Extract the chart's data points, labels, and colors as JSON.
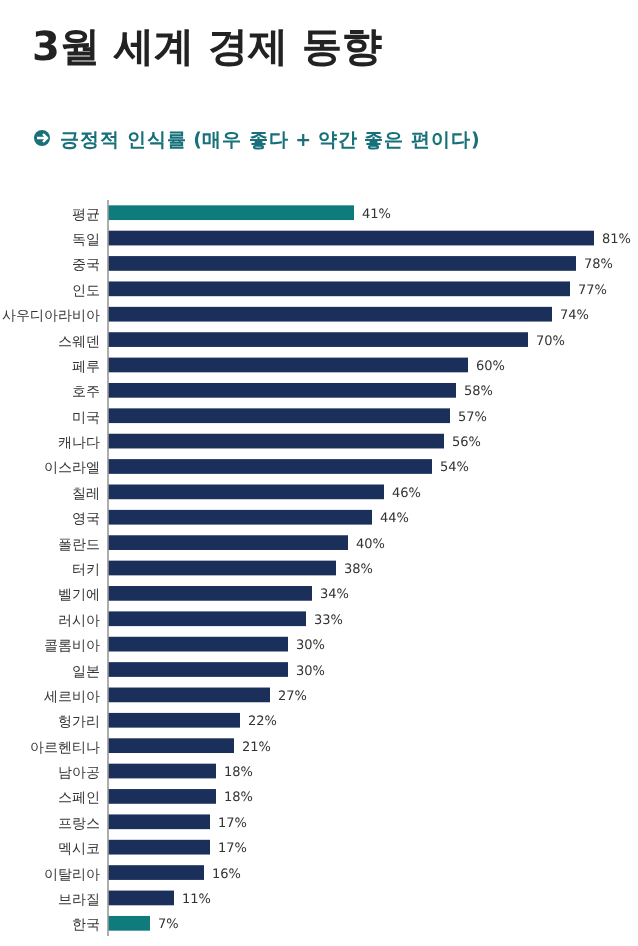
{
  "chart_data": {
    "type": "bar",
    "orientation": "horizontal",
    "title": "3월 세계 경제 동향",
    "subtitle": "긍정적 인식률 (매우 좋다 + 약간 좋은 편이다)",
    "categories": [
      "평균",
      "독일",
      "중국",
      "인도",
      "사우디아라비아",
      "스웨덴",
      "페루",
      "호주",
      "미국",
      "캐나다",
      "이스라엘",
      "칠레",
      "영국",
      "폴란드",
      "터키",
      "벨기에",
      "러시아",
      "콜롬비아",
      "일본",
      "세르비아",
      "헝가리",
      "아르헨티나",
      "남아공",
      "스페인",
      "프랑스",
      "멕시코",
      "이탈리아",
      "브라질",
      "한국"
    ],
    "values": [
      41,
      81,
      78,
      77,
      74,
      70,
      60,
      58,
      57,
      56,
      54,
      46,
      44,
      40,
      38,
      34,
      33,
      30,
      30,
      27,
      22,
      21,
      18,
      18,
      17,
      17,
      16,
      11,
      7
    ],
    "value_labels": [
      "41%",
      "81%",
      "78%",
      "77%",
      "74%",
      "70%",
      "60%",
      "58%",
      "57%",
      "56%",
      "54%",
      "46%",
      "44%",
      "40%",
      "38%",
      "34%",
      "33%",
      "30%",
      "30%",
      "27%",
      "22%",
      "21%",
      "18%",
      "18%",
      "17%",
      "17%",
      "16%",
      "11%",
      "7%"
    ],
    "colors": [
      "#0f7b7c",
      "#1b2f5b",
      "#1b2f5b",
      "#1b2f5b",
      "#1b2f5b",
      "#1b2f5b",
      "#1b2f5b",
      "#1b2f5b",
      "#1b2f5b",
      "#1b2f5b",
      "#1b2f5b",
      "#1b2f5b",
      "#1b2f5b",
      "#1b2f5b",
      "#1b2f5b",
      "#1b2f5b",
      "#1b2f5b",
      "#1b2f5b",
      "#1b2f5b",
      "#1b2f5b",
      "#1b2f5b",
      "#1b2f5b",
      "#1b2f5b",
      "#1b2f5b",
      "#1b2f5b",
      "#1b2f5b",
      "#1b2f5b",
      "#1b2f5b",
      "#0f7b7c"
    ]
  }
}
